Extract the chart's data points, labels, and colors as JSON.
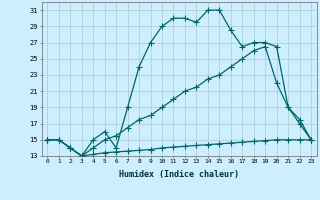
{
  "xlabel": "Humidex (Indice chaleur)",
  "ylabel": "",
  "bg_color": "#cceeff",
  "line_color": "#006666",
  "grid_color": "#aacccc",
  "xlim": [
    -0.5,
    23.5
  ],
  "ylim": [
    13,
    32
  ],
  "xticks": [
    0,
    1,
    2,
    3,
    4,
    5,
    6,
    7,
    8,
    9,
    10,
    11,
    12,
    13,
    14,
    15,
    16,
    17,
    18,
    19,
    20,
    21,
    22,
    23
  ],
  "yticks": [
    13,
    15,
    17,
    19,
    21,
    23,
    25,
    27,
    29,
    31
  ],
  "curve1_x": [
    0,
    1,
    2,
    3,
    4,
    5,
    6,
    7,
    8,
    9,
    10,
    11,
    12,
    13,
    14,
    15,
    16,
    17,
    18,
    19,
    20,
    21,
    22,
    23
  ],
  "curve1_y": [
    15,
    15,
    14,
    13,
    15,
    16,
    14,
    19,
    24,
    27,
    29,
    30,
    30,
    29.5,
    31,
    31,
    28.5,
    26.5,
    27,
    27,
    26.5,
    19,
    17,
    15
  ],
  "curve2_x": [
    0,
    1,
    2,
    3,
    4,
    5,
    6,
    7,
    8,
    9,
    10,
    11,
    12,
    13,
    14,
    15,
    16,
    17,
    18,
    19,
    20,
    21,
    22,
    23
  ],
  "curve2_y": [
    15,
    15,
    14,
    13,
    14,
    15,
    15.5,
    16.5,
    17.5,
    18,
    19,
    20,
    21,
    21.5,
    22.5,
    23,
    24,
    25,
    26,
    26.5,
    22,
    19,
    17.5,
    15
  ],
  "curve3_x": [
    0,
    1,
    2,
    3,
    4,
    5,
    6,
    7,
    8,
    9,
    10,
    11,
    12,
    13,
    14,
    15,
    16,
    17,
    18,
    19,
    20,
    21,
    22,
    23
  ],
  "curve3_y": [
    15,
    15,
    14,
    13,
    13.2,
    13.4,
    13.5,
    13.6,
    13.7,
    13.8,
    14.0,
    14.1,
    14.2,
    14.3,
    14.4,
    14.5,
    14.6,
    14.7,
    14.8,
    14.9,
    15.0,
    15.0,
    15.0,
    15.0
  ]
}
